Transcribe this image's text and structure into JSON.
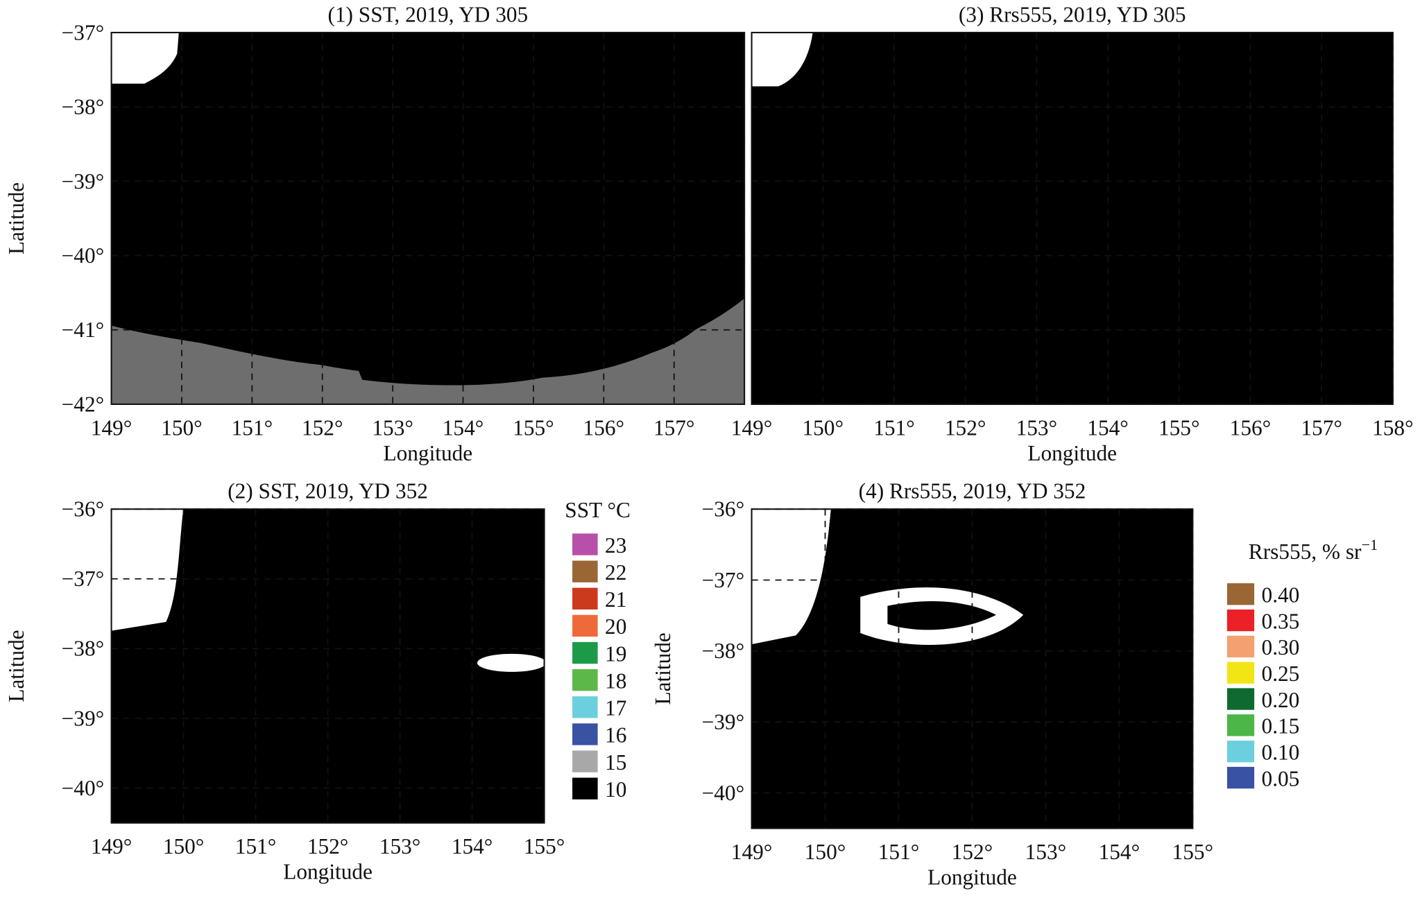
{
  "panels": [
    {
      "title": "(1) SST, 2019, YD 305",
      "xlabel": "Longitude",
      "ylabel": "Latitude",
      "xlim": [
        149,
        158
      ],
      "ylim": [
        -42,
        -37
      ],
      "xticks": [
        {
          "value": 149,
          "label": "149°"
        },
        {
          "value": 150,
          "label": "150°"
        },
        {
          "value": 151,
          "label": "151°"
        },
        {
          "value": 152,
          "label": "152°"
        },
        {
          "value": 153,
          "label": "153°"
        },
        {
          "value": 154,
          "label": "154°"
        },
        {
          "value": 155,
          "label": "155°"
        },
        {
          "value": 156,
          "label": "156°"
        },
        {
          "value": 157,
          "label": "157°"
        }
      ],
      "yticks": [
        {
          "value": -37,
          "label": "−37°"
        },
        {
          "value": -38,
          "label": "−38°"
        },
        {
          "value": -39,
          "label": "−39°"
        },
        {
          "value": -40,
          "label": "−40°"
        },
        {
          "value": -41,
          "label": "−41°"
        },
        {
          "value": -42,
          "label": "−42°"
        }
      ]
    },
    {
      "title": "(3) Rrs555, 2019, YD 305",
      "xlabel": "Longitude",
      "xlim": [
        149,
        158
      ],
      "ylim": [
        -42,
        -37
      ],
      "xticks": [
        {
          "value": 149,
          "label": "149°"
        },
        {
          "value": 150,
          "label": "150°"
        },
        {
          "value": 151,
          "label": "151°"
        },
        {
          "value": 152,
          "label": "152°"
        },
        {
          "value": 153,
          "label": "153°"
        },
        {
          "value": 154,
          "label": "154°"
        },
        {
          "value": 155,
          "label": "155°"
        },
        {
          "value": 156,
          "label": "156°"
        },
        {
          "value": 157,
          "label": "157°"
        },
        {
          "value": 158,
          "label": "158°"
        }
      ]
    },
    {
      "title": "(2) SST, 2019, YD 352",
      "xlabel": "Longitude",
      "ylabel": "Latitude",
      "xlim": [
        149,
        155
      ],
      "ylim": [
        -40.5,
        -36
      ],
      "xticks": [
        {
          "value": 149,
          "label": "149°"
        },
        {
          "value": 150,
          "label": "150°"
        },
        {
          "value": 151,
          "label": "151°"
        },
        {
          "value": 152,
          "label": "152°"
        },
        {
          "value": 153,
          "label": "153°"
        },
        {
          "value": 154,
          "label": "154°"
        },
        {
          "value": 155,
          "label": "155°"
        }
      ],
      "yticks": [
        {
          "value": -36,
          "label": "−36°"
        },
        {
          "value": -37,
          "label": "−37°"
        },
        {
          "value": -38,
          "label": "−38°"
        },
        {
          "value": -39,
          "label": "−39°"
        },
        {
          "value": -40,
          "label": "−40°"
        }
      ]
    },
    {
      "title": "(4) Rrs555, 2019, YD 352",
      "xlabel": "Longitude",
      "ylabel": "Latitude",
      "xlim": [
        149,
        155
      ],
      "ylim": [
        -40.5,
        -36
      ],
      "xticks": [
        {
          "value": 149,
          "label": "149°"
        },
        {
          "value": 150,
          "label": "150°"
        },
        {
          "value": 151,
          "label": "151°"
        },
        {
          "value": 152,
          "label": "152°"
        },
        {
          "value": 153,
          "label": "153°"
        },
        {
          "value": 154,
          "label": "154°"
        },
        {
          "value": 155,
          "label": "155°"
        }
      ],
      "yticks": [
        {
          "value": -36,
          "label": "−36°"
        },
        {
          "value": -37,
          "label": "−37°"
        },
        {
          "value": -38,
          "label": "−38°"
        },
        {
          "value": -39,
          "label": "−39°"
        },
        {
          "value": -40,
          "label": "−40°"
        }
      ]
    }
  ],
  "sst_legend": {
    "title": "SST °C",
    "entries": [
      {
        "label": "23",
        "color": "#b84fa8"
      },
      {
        "label": "22",
        "color": "#9a6634"
      },
      {
        "label": "21",
        "color": "#cc3a1e"
      },
      {
        "label": "20",
        "color": "#ee6a3a"
      },
      {
        "label": "19",
        "color": "#1d9a48"
      },
      {
        "label": "18",
        "color": "#5cb848"
      },
      {
        "label": "17",
        "color": "#6ccfdd"
      },
      {
        "label": "16",
        "color": "#3a52a4"
      },
      {
        "label": "15",
        "color": "#a8a8a8"
      },
      {
        "label": "10",
        "color": "#000000"
      }
    ]
  },
  "rrs_legend": {
    "title": "Rrs555, % sr",
    "title_exponent": "−1",
    "entries": [
      {
        "label": "0.40",
        "color": "#9a6634"
      },
      {
        "label": "0.35",
        "color": "#ec2027"
      },
      {
        "label": "0.30",
        "color": "#f4a070"
      },
      {
        "label": "0.25",
        "color": "#f2e516"
      },
      {
        "label": "0.20",
        "color": "#0f6a30"
      },
      {
        "label": "0.15",
        "color": "#4cb648"
      },
      {
        "label": "0.10",
        "color": "#6ccfdd"
      },
      {
        "label": "0.05",
        "color": "#3a52a4"
      }
    ]
  }
}
